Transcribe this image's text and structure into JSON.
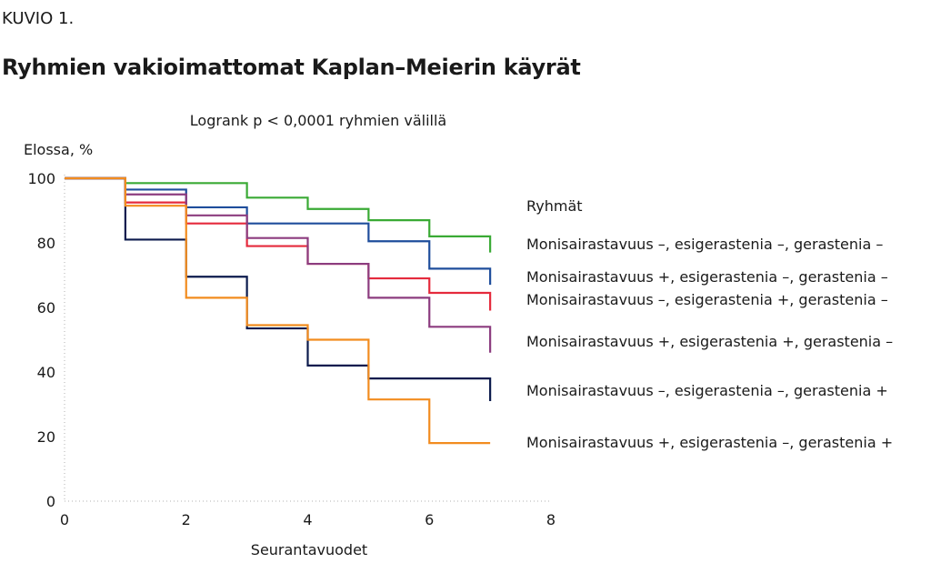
{
  "figure_label": "KUVIO 1.",
  "figure_title": "Ryhmien vakioimattomat Kaplan–Meierin käyrät",
  "chart_data": {
    "type": "line",
    "step": true,
    "title": "Logrank p < 0,0001 ryhmien välillä",
    "xlabel": "Seurantavuodet",
    "ylabel": "Elossa, %",
    "xlim": [
      0,
      8
    ],
    "ylim": [
      0,
      100
    ],
    "xticks": [
      "0",
      "2",
      "4",
      "6",
      "8"
    ],
    "yticks": [
      "0",
      "20",
      "40",
      "60",
      "80",
      "100"
    ],
    "grid": false,
    "legend_title": "Ryhmät",
    "legend_position": "right",
    "series": [
      {
        "name": "Monisairastavuus –, esigerastenia –, gerastenia –",
        "color": "#3aaa35",
        "x": [
          0,
          1,
          2,
          3,
          4,
          5,
          6,
          7
        ],
        "y": [
          100,
          98.5,
          98.5,
          94,
          90.5,
          87,
          82,
          77
        ]
      },
      {
        "name": "Monisairastavuus +, esigerastenia –, gerastenia –",
        "color": "#1f4e9c",
        "x": [
          0,
          1,
          2,
          3,
          4,
          5,
          6,
          7
        ],
        "y": [
          100,
          96.5,
          91,
          86,
          86,
          80.5,
          72,
          67
        ]
      },
      {
        "name": "Monisairastavuus –, esigerastenia +, gerastenia –",
        "color": "#e52a3c",
        "x": [
          0,
          1,
          2,
          3,
          4,
          5,
          6,
          7
        ],
        "y": [
          100,
          92.5,
          86,
          79,
          73.5,
          69,
          64.5,
          59
        ]
      },
      {
        "name": "Monisairastavuus +, esigerastenia +, gerastenia –",
        "color": "#8c3c7f",
        "x": [
          0,
          1,
          2,
          3,
          4,
          5,
          6,
          7
        ],
        "y": [
          100,
          95,
          88.5,
          81.5,
          73.5,
          63,
          54,
          46
        ]
      },
      {
        "name": "Monisairastavuus –, esigerastenia –, gerastenia +",
        "color": "#0c1b4d",
        "x": [
          0,
          1,
          2,
          3,
          4,
          5,
          6,
          7
        ],
        "y": [
          100,
          81,
          69.5,
          53.5,
          42,
          38,
          38,
          31
        ]
      },
      {
        "name": "Monisairastavuus +, esigerastenia –, gerastenia +",
        "color": "#f28c1f",
        "x": [
          0,
          1,
          2,
          3,
          4,
          5,
          6,
          7
        ],
        "y": [
          100,
          91.5,
          63,
          54.5,
          50,
          31.5,
          18,
          18
        ]
      }
    ]
  }
}
